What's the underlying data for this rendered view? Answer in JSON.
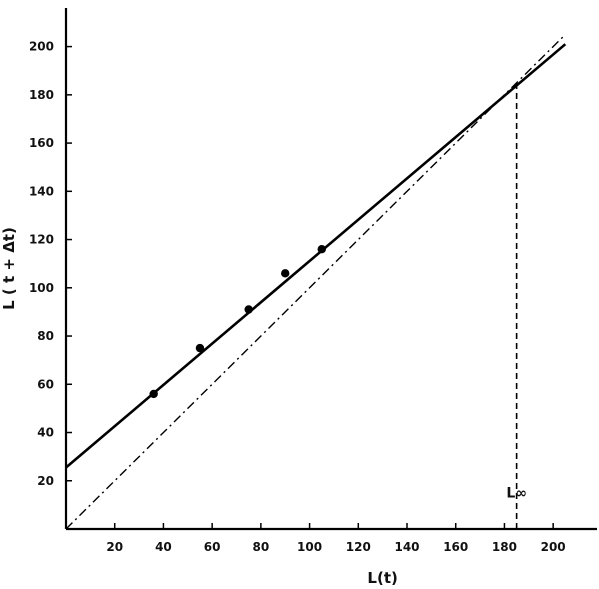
{
  "chart_data": {
    "type": "scatter",
    "title": "",
    "xlabel": "L(t)",
    "ylabel": "L ( t + Δt)",
    "xlim": [
      0,
      218
    ],
    "ylim": [
      0,
      216
    ],
    "x_ticks": [
      20,
      40,
      60,
      80,
      100,
      120,
      140,
      160,
      180,
      200
    ],
    "x_tick_labels": [
      "20",
      "40",
      "60",
      "80",
      "100",
      "120",
      "140",
      "160",
      "180",
      "200"
    ],
    "y_ticks": [
      20,
      40,
      60,
      80,
      100,
      120,
      140,
      160,
      180,
      200
    ],
    "y_tick_labels": [
      "20",
      "40",
      "60",
      "80",
      "100",
      "120",
      "140",
      "160",
      "180",
      "200"
    ],
    "grid": false,
    "series": [
      {
        "kind": "points",
        "x": [
          36,
          55,
          75,
          90,
          105
        ],
        "y": [
          56,
          75,
          91,
          106,
          116
        ]
      },
      {
        "kind": "fit-line",
        "style": "solid",
        "x": [
          0,
          205
        ],
        "y": [
          25.5,
          201
        ]
      },
      {
        "kind": "bisector",
        "style": "dash-dot",
        "x": [
          0,
          205
        ],
        "y": [
          0,
          205
        ]
      },
      {
        "kind": "intersection-drop",
        "style": "dashed",
        "x": [
          185,
          185
        ],
        "y": [
          0,
          185
        ]
      }
    ],
    "annotations": [
      {
        "text": "L∞",
        "x": 185,
        "y": 13
      }
    ]
  }
}
